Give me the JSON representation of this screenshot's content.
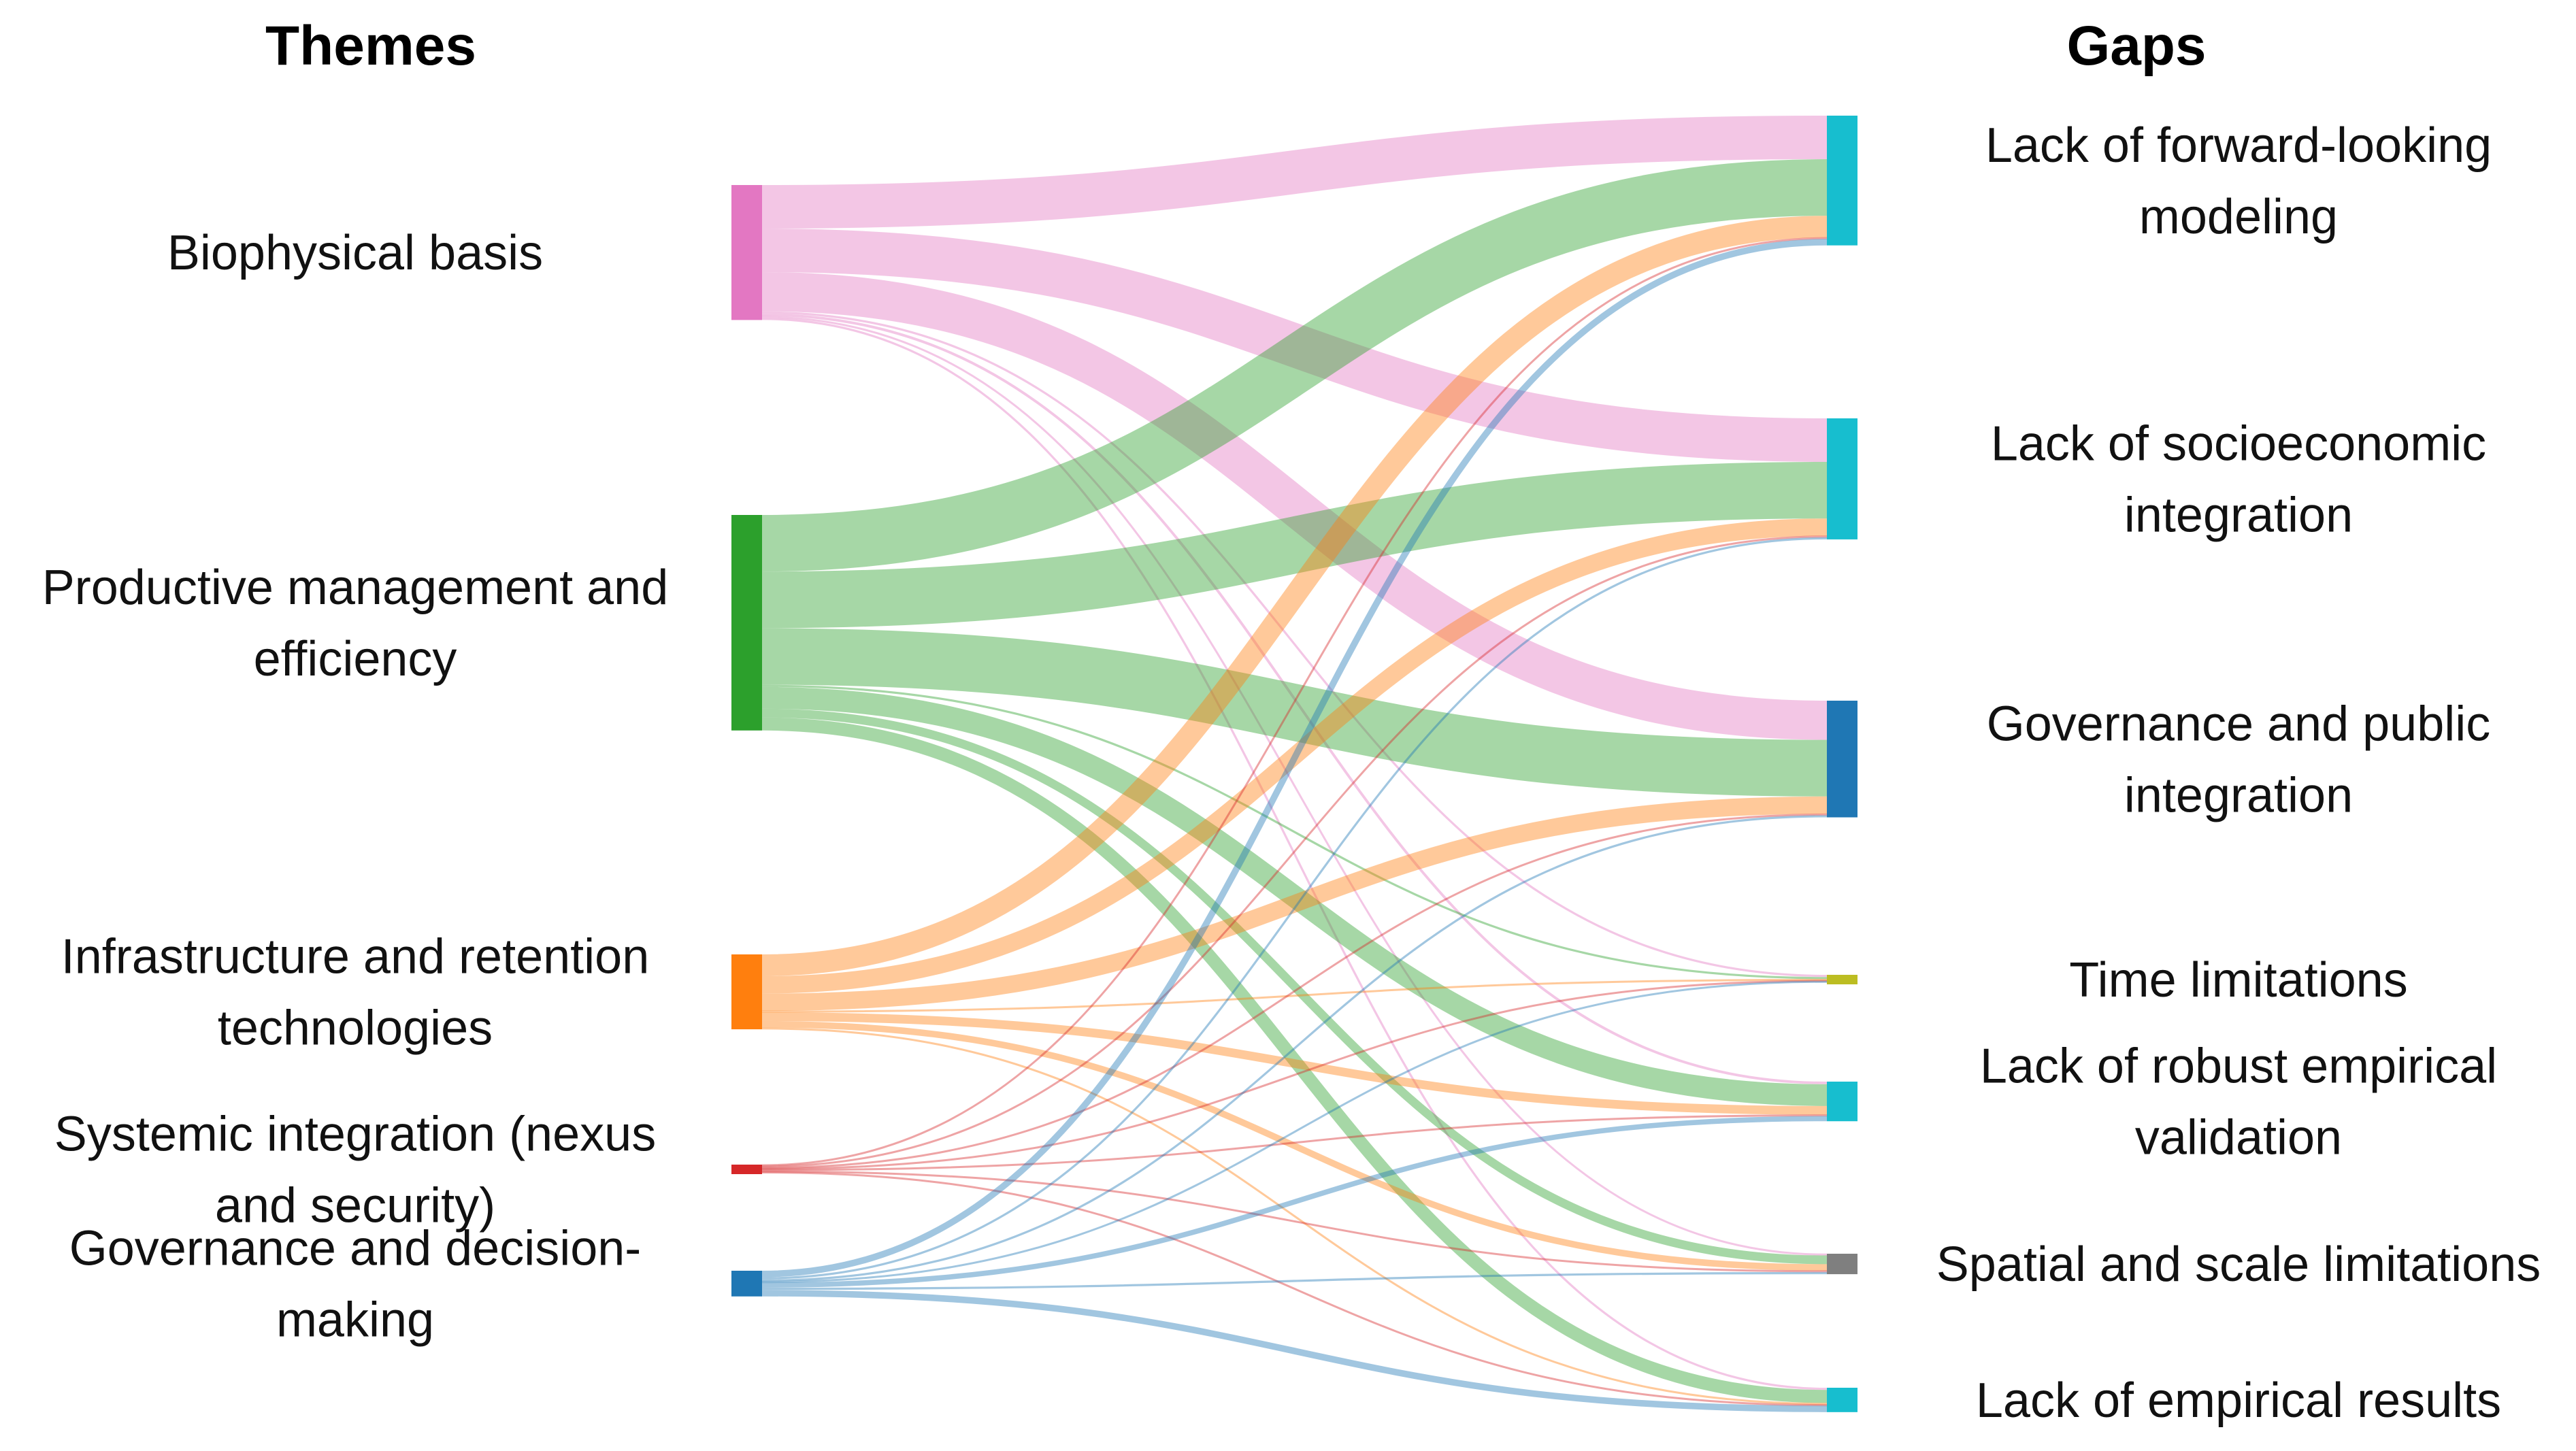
{
  "headings": {
    "left": "Themes",
    "right": "Gaps"
  },
  "chart_data": {
    "type": "sankey",
    "sources": [
      {
        "id": "bio",
        "lines": [
          "Biophysical basis"
        ],
        "color": "#e377c2"
      },
      {
        "id": "prod",
        "lines": [
          "Productive management and",
          "efficiency"
        ],
        "color": "#2ca02c"
      },
      {
        "id": "infra",
        "lines": [
          "Infrastructure and retention",
          "technologies"
        ],
        "color": "#ff7f0e"
      },
      {
        "id": "sys",
        "lines": [
          "Systemic integration (nexus",
          "and security)"
        ],
        "color": "#d62728"
      },
      {
        "id": "gov",
        "lines": [
          "Governance and decision-",
          "making"
        ],
        "color": "#1f77b4"
      }
    ],
    "targets": [
      {
        "id": "fwd",
        "lines": [
          "Lack of forward-looking",
          "modeling"
        ],
        "color": "#17becf"
      },
      {
        "id": "socio",
        "lines": [
          "Lack of socioeconomic",
          "integration"
        ],
        "color": "#17becf"
      },
      {
        "id": "govpub",
        "lines": [
          "Governance and public",
          "integration"
        ],
        "color": "#1f77b4"
      },
      {
        "id": "time",
        "lines": [
          "Time limitations"
        ],
        "color": "#bcbd22"
      },
      {
        "id": "robust",
        "lines": [
          "Lack of robust empirical",
          "validation"
        ],
        "color": "#17becf"
      },
      {
        "id": "spatial",
        "lines": [
          "Spatial and scale limitations"
        ],
        "color": "#7f7f7f"
      },
      {
        "id": "emp",
        "lines": [
          "Lack of empirical results"
        ],
        "color": "#17becf"
      }
    ],
    "links": [
      {
        "source": "bio",
        "target": "fwd",
        "value": 10
      },
      {
        "source": "bio",
        "target": "socio",
        "value": 10
      },
      {
        "source": "bio",
        "target": "govpub",
        "value": 9
      },
      {
        "source": "bio",
        "target": "time",
        "value": 0.5
      },
      {
        "source": "bio",
        "target": "robust",
        "value": 0.6
      },
      {
        "source": "bio",
        "target": "spatial",
        "value": 0.4
      },
      {
        "source": "bio",
        "target": "emp",
        "value": 0.5
      },
      {
        "source": "prod",
        "target": "fwd",
        "value": 13
      },
      {
        "source": "prod",
        "target": "socio",
        "value": 13
      },
      {
        "source": "prod",
        "target": "govpub",
        "value": 13
      },
      {
        "source": "prod",
        "target": "time",
        "value": 0.5
      },
      {
        "source": "prod",
        "target": "robust",
        "value": 5
      },
      {
        "source": "prod",
        "target": "spatial",
        "value": 2
      },
      {
        "source": "prod",
        "target": "emp",
        "value": 3
      },
      {
        "source": "infra",
        "target": "fwd",
        "value": 5
      },
      {
        "source": "infra",
        "target": "socio",
        "value": 4
      },
      {
        "source": "infra",
        "target": "govpub",
        "value": 4
      },
      {
        "source": "infra",
        "target": "time",
        "value": 0.3
      },
      {
        "source": "infra",
        "target": "robust",
        "value": 2
      },
      {
        "source": "infra",
        "target": "spatial",
        "value": 1.5
      },
      {
        "source": "infra",
        "target": "emp",
        "value": 0.4
      },
      {
        "source": "sys",
        "target": "fwd",
        "value": 0.3
      },
      {
        "source": "sys",
        "target": "socio",
        "value": 0.3
      },
      {
        "source": "sys",
        "target": "govpub",
        "value": 0.3
      },
      {
        "source": "sys",
        "target": "time",
        "value": 0.2
      },
      {
        "source": "sys",
        "target": "robust",
        "value": 0.3
      },
      {
        "source": "sys",
        "target": "spatial",
        "value": 0.3
      },
      {
        "source": "sys",
        "target": "emp",
        "value": 0.2
      },
      {
        "source": "gov",
        "target": "fwd",
        "value": 1.5
      },
      {
        "source": "gov",
        "target": "socio",
        "value": 0.5
      },
      {
        "source": "gov",
        "target": "govpub",
        "value": 0.5
      },
      {
        "source": "gov",
        "target": "time",
        "value": 0.2
      },
      {
        "source": "gov",
        "target": "robust",
        "value": 1.2
      },
      {
        "source": "gov",
        "target": "spatial",
        "value": 0.5
      },
      {
        "source": "gov",
        "target": "emp",
        "value": 1.5
      }
    ]
  }
}
